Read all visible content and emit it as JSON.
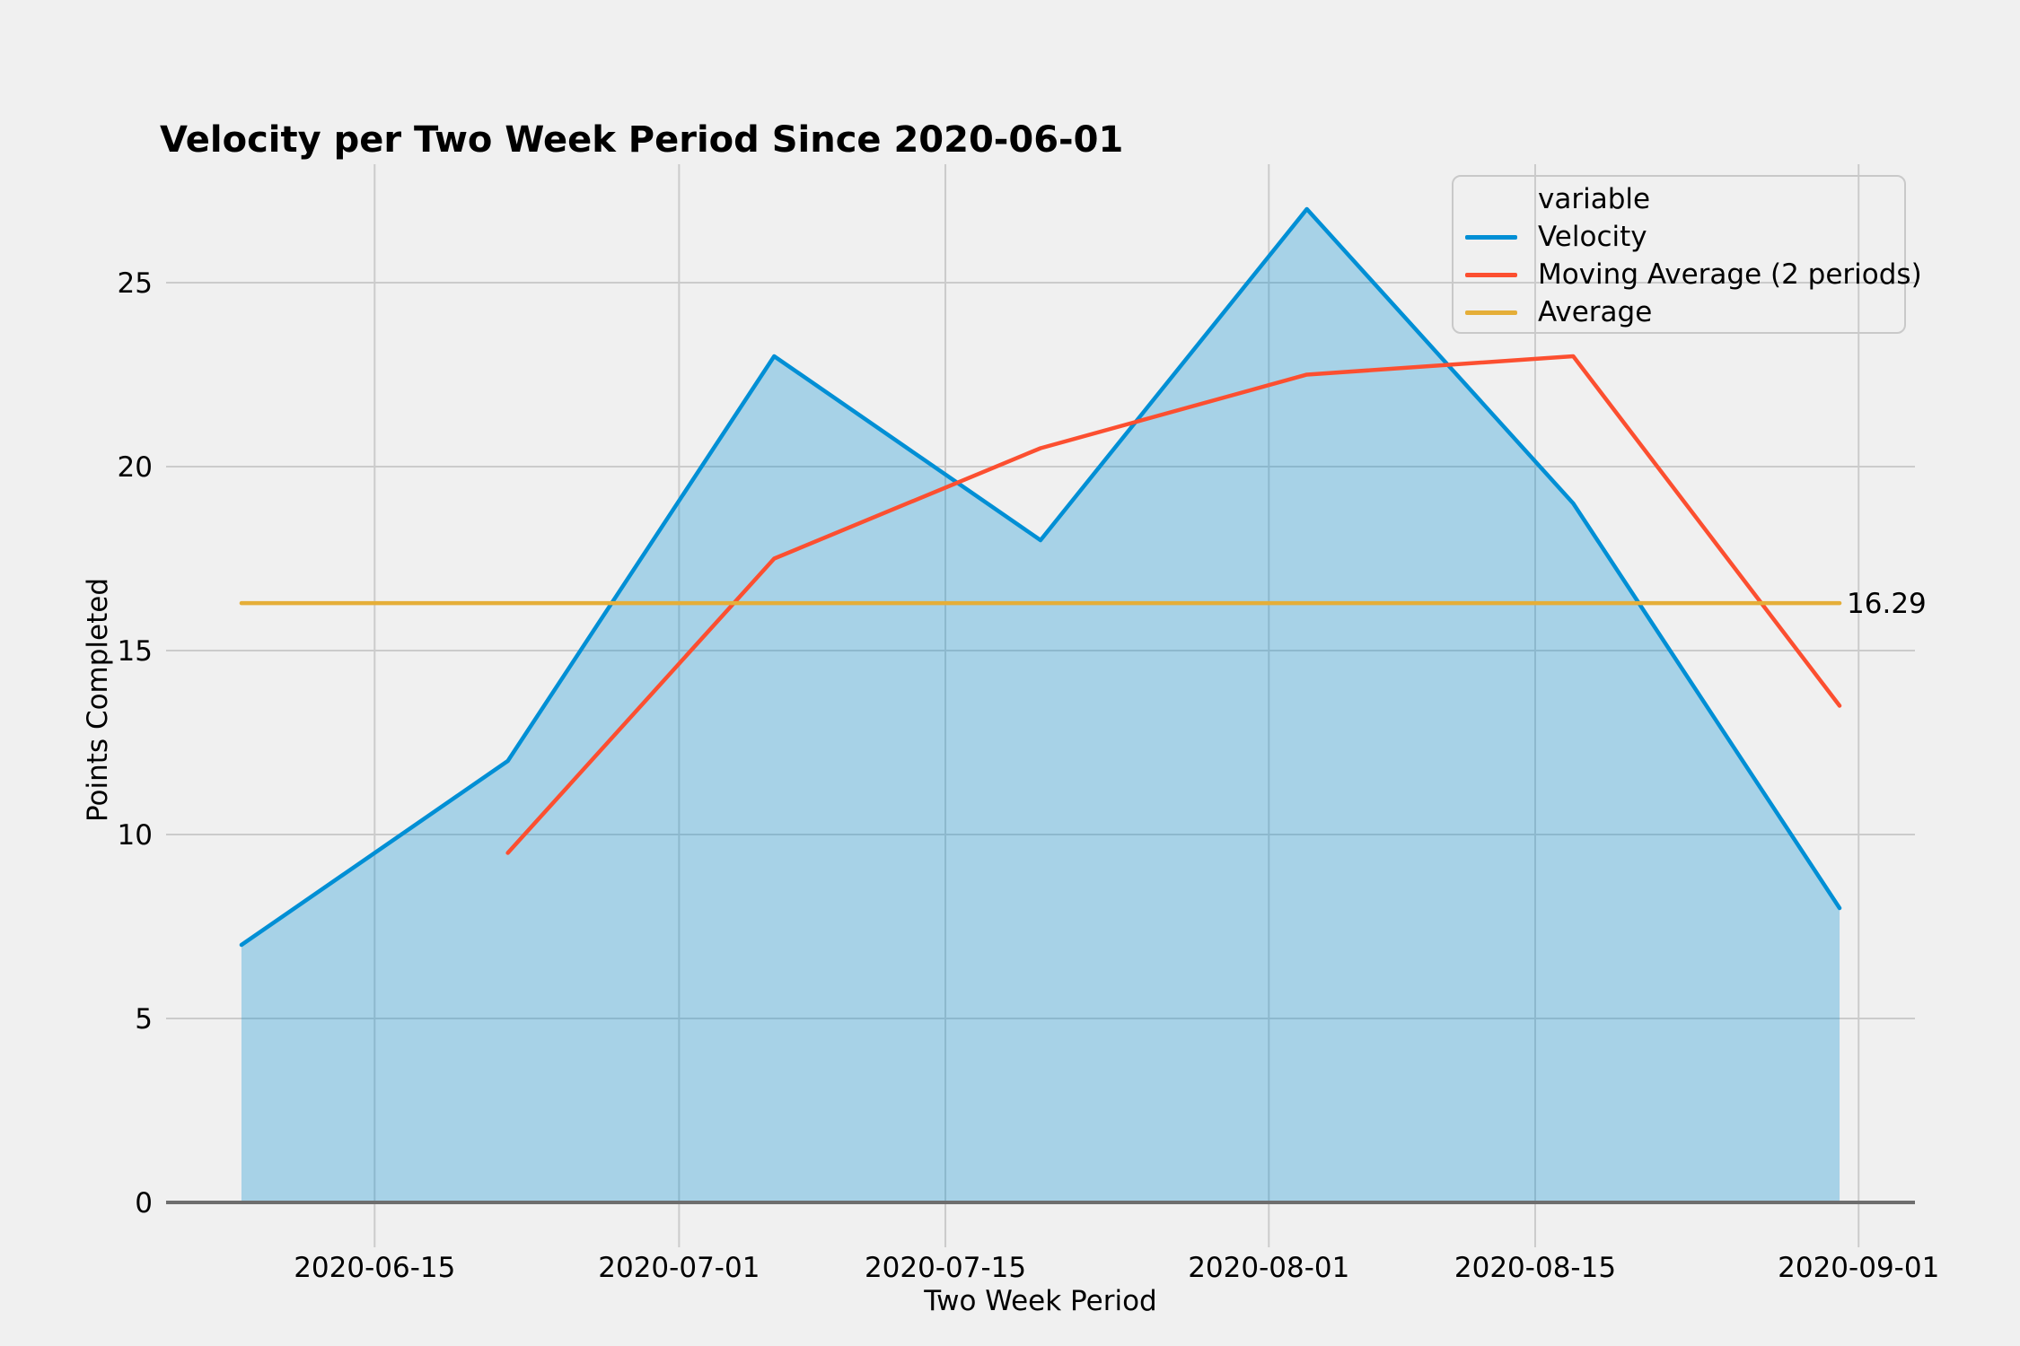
{
  "figure": {
    "background_color": "#f0f0f0",
    "grid_color": "#cbcbcb",
    "zero_line_color": "#6e6e6e",
    "text_color": "#000000",
    "legend_border_color": "#c9c9c9"
  },
  "chart_data": {
    "type": "line",
    "title": "Velocity per Two Week Period Since 2020-06-01",
    "xlabel": "Two Week Period",
    "ylabel": "Points Completed",
    "x": [
      "2020-06-08",
      "2020-06-22",
      "2020-07-06",
      "2020-07-20",
      "2020-08-03",
      "2020-08-17",
      "2020-08-31"
    ],
    "series": [
      {
        "name": "Velocity",
        "color": "#008fd5",
        "style": "area-line",
        "fill_opacity": 0.3,
        "values": [
          7,
          12,
          23,
          18,
          27,
          19,
          8
        ]
      },
      {
        "name": "Moving Average (2 periods)",
        "color": "#fc4f30",
        "style": "line",
        "values": [
          null,
          9.5,
          17.5,
          20.5,
          22.5,
          23,
          13.5
        ]
      },
      {
        "name": "Average",
        "color": "#e5ae38",
        "style": "hline",
        "value": 16.29,
        "annotation": "16.29"
      }
    ],
    "x_ticks": [
      "2020-06-15",
      "2020-07-01",
      "2020-07-15",
      "2020-08-01",
      "2020-08-15",
      "2020-09-01"
    ],
    "y_ticks": [
      0,
      5,
      10,
      15,
      20,
      25
    ],
    "ylim": [
      0,
      27
    ],
    "grid": true,
    "legend": {
      "title": "variable",
      "position": "upper right"
    }
  }
}
